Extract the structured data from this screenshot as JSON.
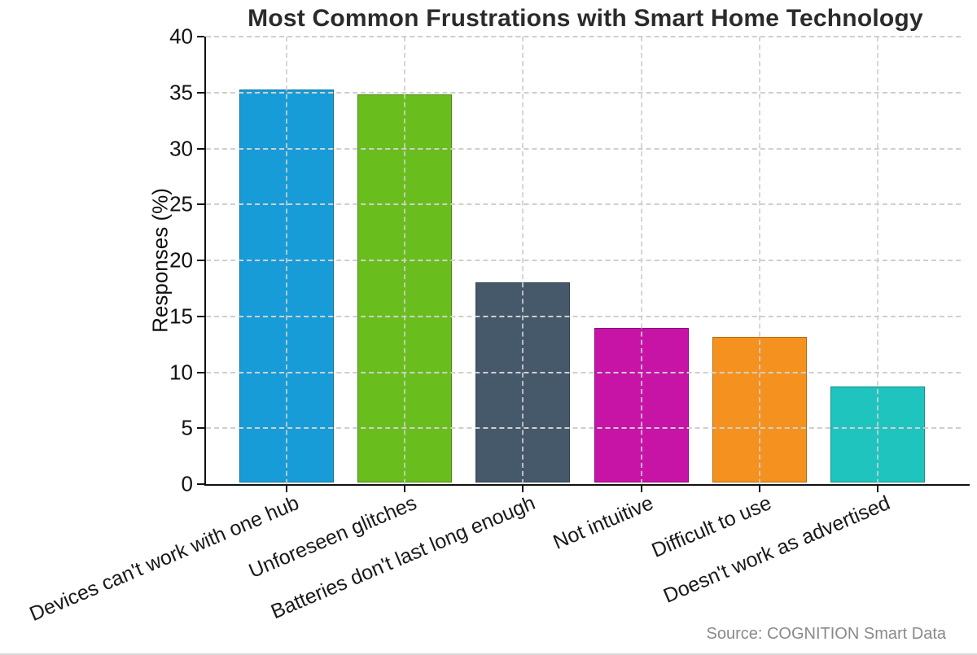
{
  "title": "Most Common Frustrations with Smart Home Technology",
  "source": "Source: COGNITION Smart Data",
  "colors": {
    "title_text": "#2b2b2b",
    "axis_text": "#111111",
    "grid": "#cfcfcf",
    "spine": "#111111",
    "source_text": "#8a8a8a",
    "background": "#ffffff"
  },
  "chart_data": {
    "type": "bar",
    "title": "Most Common Frustrations with Smart Home Technology",
    "xlabel": "",
    "ylabel": "Responses (%)",
    "categories": [
      "Devices can't work with one hub",
      "Unforeseen glitches",
      "Batteries don't last long enough",
      "Not intuitive",
      "Difficult to use",
      "Doesn't work as advertised"
    ],
    "values": [
      35.1,
      34.7,
      17.9,
      13.8,
      13.0,
      8.6
    ],
    "bar_colors": [
      "#189cd8",
      "#69be1e",
      "#46596b",
      "#c714a7",
      "#f5921f",
      "#20c4be"
    ],
    "ylim": [
      0,
      40
    ],
    "yticks": [
      0,
      5,
      10,
      15,
      20,
      25,
      30,
      35,
      40
    ],
    "grid": "both-dashed",
    "legend": "none",
    "xtick_rotation_deg": 23
  }
}
